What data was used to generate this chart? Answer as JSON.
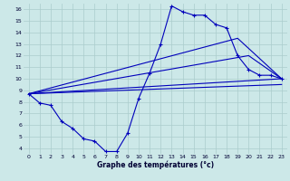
{
  "xlabel": "Graphe des températures (°c)",
  "background_color": "#cce8e8",
  "grid_color": "#aacccc",
  "line_color": "#0000bb",
  "xlim": [
    -0.5,
    23.5
  ],
  "ylim": [
    3.5,
    16.5
  ],
  "xticks": [
    0,
    1,
    2,
    3,
    4,
    5,
    6,
    7,
    8,
    9,
    10,
    11,
    12,
    13,
    14,
    15,
    16,
    17,
    18,
    19,
    20,
    21,
    22,
    23
  ],
  "yticks": [
    4,
    5,
    6,
    7,
    8,
    9,
    10,
    11,
    12,
    13,
    14,
    15,
    16
  ],
  "main_x": [
    0,
    1,
    2,
    3,
    4,
    5,
    6,
    7,
    8,
    9,
    10,
    11,
    12,
    13,
    14,
    15,
    16,
    17,
    18,
    19,
    20,
    21,
    22,
    23
  ],
  "main_y": [
    8.7,
    7.9,
    7.7,
    6.3,
    5.7,
    4.8,
    4.6,
    3.7,
    3.7,
    5.3,
    8.3,
    10.5,
    13.0,
    16.3,
    15.8,
    15.5,
    15.5,
    14.7,
    14.4,
    12.0,
    10.8,
    10.3,
    10.3,
    10.0
  ],
  "trend1_x": [
    0,
    23
  ],
  "trend1_y": [
    8.7,
    9.5
  ],
  "trend2_x": [
    0,
    23
  ],
  "trend2_y": [
    8.7,
    10.0
  ],
  "trend3_x": [
    0,
    20,
    23
  ],
  "trend3_y": [
    8.7,
    12.0,
    10.0
  ],
  "trend4_x": [
    0,
    19,
    23
  ],
  "trend4_y": [
    8.7,
    13.5,
    10.0
  ]
}
